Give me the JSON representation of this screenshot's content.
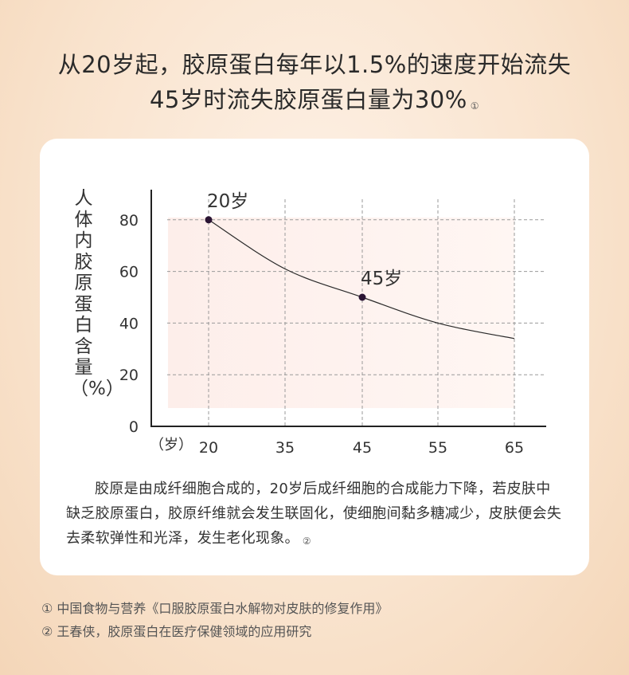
{
  "headline": {
    "line1": "从20岁起，胶原蛋白每年以1.5%的速度开始流失",
    "line2": "45岁时流失胶原蛋白量为30%",
    "note_mark": "①"
  },
  "chart_data": {
    "type": "line",
    "ylabel": "人体内胶原蛋白含量（%）",
    "xlabel": "（岁）",
    "x_ticks": [
      "20",
      "35",
      "45",
      "55",
      "65"
    ],
    "y_ticks": [
      "0",
      "20",
      "40",
      "60",
      "80"
    ],
    "ylim": [
      0,
      90
    ],
    "grid": true,
    "series": [
      {
        "points": [
          {
            "x": 20,
            "y": 80
          },
          {
            "x": 35,
            "y": 61
          },
          {
            "x": 45,
            "y": 50
          },
          {
            "x": 55,
            "y": 40
          },
          {
            "x": 65,
            "y": 34
          }
        ]
      }
    ],
    "annotations": [
      {
        "x": 20,
        "y": 80,
        "label": "20岁"
      },
      {
        "x": 45,
        "y": 50,
        "label": "45岁"
      }
    ],
    "colors": {
      "line": "#2a2a2a",
      "marker": "#2a1433",
      "fill": "#fdf1ee",
      "grid": "#9a9a9a"
    }
  },
  "description": {
    "text": "胶原是由成纤细胞合成的，20岁后成纤细胞的合成能力下降，若皮肤中缺乏胶原蛋白，胶原纤维就会发生联固化，使细胞间黏多糖减少，皮肤便会失去柔软弹性和光泽，发生老化现象。",
    "note_mark": "②"
  },
  "references": [
    "① 中国食物与营养《口服胶原蛋白水解物对皮肤的修复作用》",
    "② 王春侠，胶原蛋白在医疗保健领域的应用研究"
  ]
}
